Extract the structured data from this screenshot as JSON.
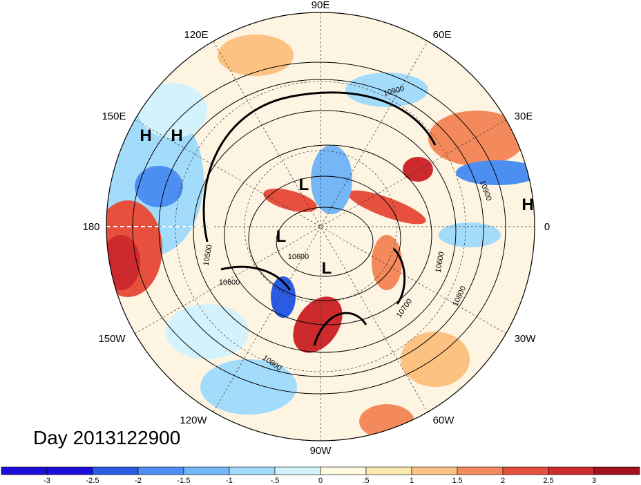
{
  "map": {
    "projection": "north-polar-stereographic",
    "lon_labels": [
      {
        "text": "90E",
        "angle": 90
      },
      {
        "text": "60E",
        "angle": 60
      },
      {
        "text": "30E",
        "angle": 30
      },
      {
        "text": "0",
        "angle": 0
      },
      {
        "text": "30W",
        "angle": -30
      },
      {
        "text": "60W",
        "angle": -60
      },
      {
        "text": "90W",
        "angle": -90
      },
      {
        "text": "120W",
        "angle": -120
      },
      {
        "text": "150W",
        "angle": -150
      },
      {
        "text": "180",
        "angle": 180
      },
      {
        "text": "150E",
        "angle": 150
      },
      {
        "text": "120E",
        "angle": 120
      }
    ],
    "pressure_labels": [
      "H",
      "H",
      "L",
      "L",
      "L",
      "H"
    ],
    "contour_labels": [
      "10900",
      "10900",
      "10600",
      "10800",
      "10700",
      "10600",
      "10500",
      "10600",
      "10800"
    ],
    "contour_levels": [
      10500,
      10600,
      10700,
      10800,
      10900
    ]
  },
  "day_label": "Day 2013122900",
  "colorbar": {
    "colors": [
      "#1a0fd8",
      "#2a5ce6",
      "#4c8ff0",
      "#74b6f6",
      "#a3dbfa",
      "#d4f2fc",
      "#fffbe0",
      "#fde9b0",
      "#fbc282",
      "#f48a5c",
      "#e8503e",
      "#cc2a2c",
      "#a1121c"
    ],
    "labels": [
      "-3",
      "-2.5",
      "-2",
      "-1.5",
      "-1",
      "-.5",
      "0",
      ".5",
      "1",
      "1.5",
      "2",
      "2.5",
      "3"
    ]
  }
}
